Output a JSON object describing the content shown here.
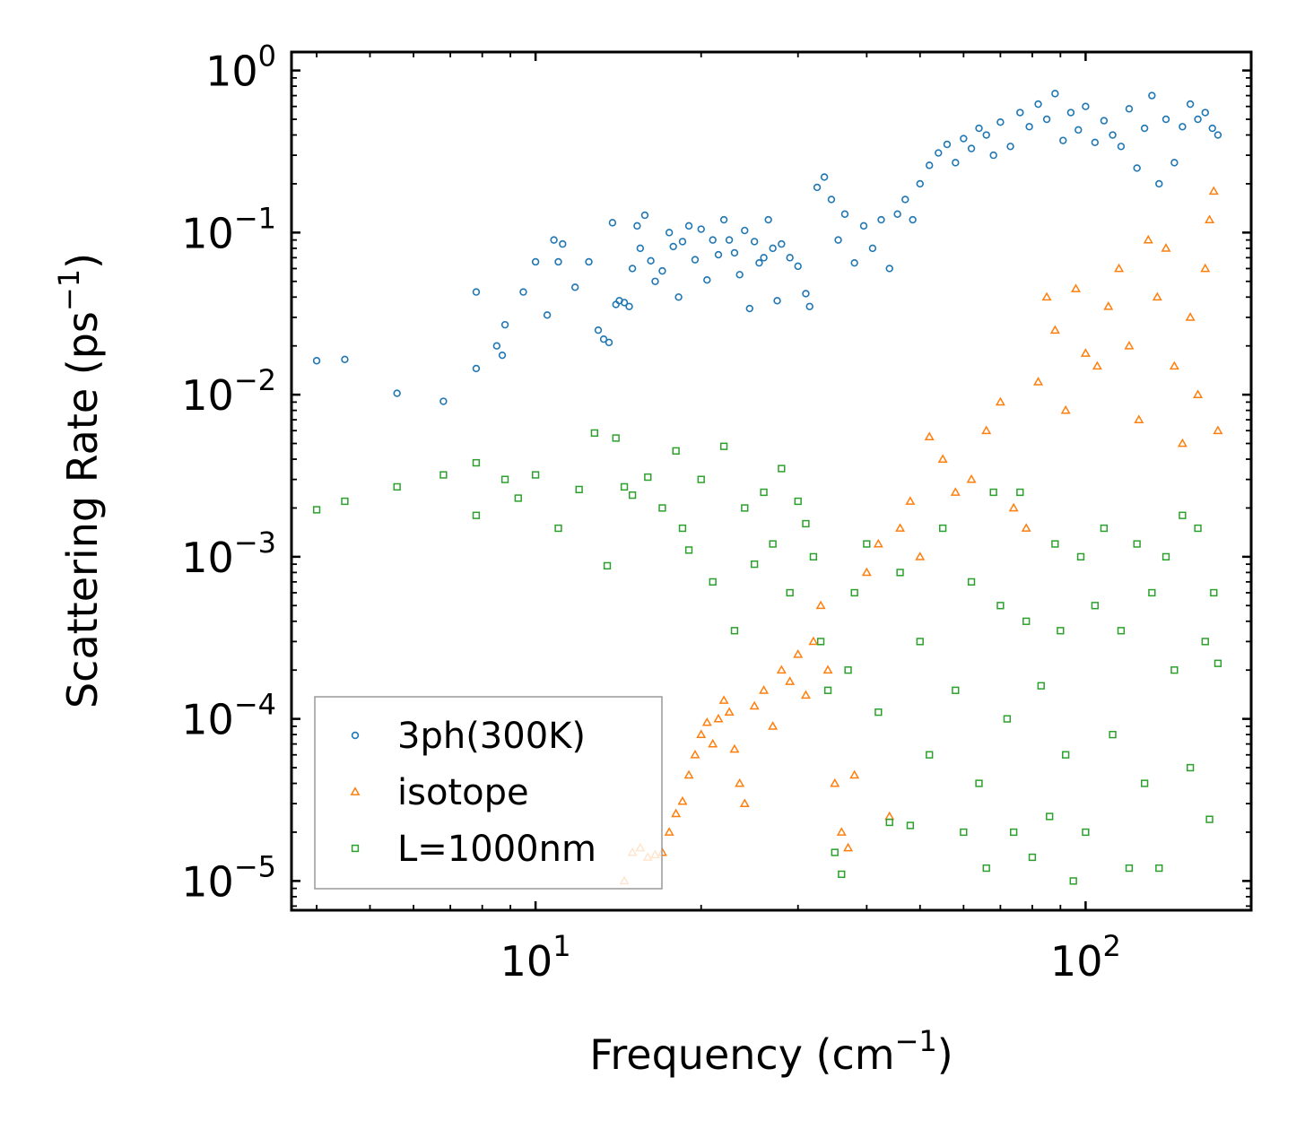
{
  "chart_data": {
    "type": "scatter",
    "xscale": "log",
    "yscale": "log",
    "xlim": [
      3.6,
      200
    ],
    "ylim": [
      6.6e-06,
      1.3
    ],
    "xlabel": {
      "text": "Frequency (cm",
      "sup": "−1",
      "tail": ")"
    },
    "ylabel": {
      "text": "Scattering Rate (ps",
      "sup": "−1",
      "tail": ")"
    },
    "x_ticks": [
      {
        "value": 10,
        "base": "10",
        "exp": "1"
      },
      {
        "value": 100,
        "base": "10",
        "exp": "2"
      }
    ],
    "y_ticks": [
      {
        "value": 1,
        "base": "10",
        "exp": "0"
      },
      {
        "value": 0.1,
        "base": "10",
        "exp": "−1"
      },
      {
        "value": 0.01,
        "base": "10",
        "exp": "−2"
      },
      {
        "value": 0.001,
        "base": "10",
        "exp": "−3"
      },
      {
        "value": 0.0001,
        "base": "10",
        "exp": "−4"
      },
      {
        "value": 1e-05,
        "base": "10",
        "exp": "−5"
      }
    ],
    "legend_position": "lower-left",
    "series": [
      {
        "name": "3ph(300K)",
        "marker": "circle",
        "color": "#1f77b4",
        "points": [
          [
            4.0,
            0.0162
          ],
          [
            4.5,
            0.0165
          ],
          [
            5.6,
            0.0102
          ],
          [
            6.8,
            0.0091
          ],
          [
            7.8,
            0.043
          ],
          [
            7.8,
            0.0145
          ],
          [
            8.5,
            0.02
          ],
          [
            8.7,
            0.0175
          ],
          [
            8.8,
            0.027
          ],
          [
            9.5,
            0.043
          ],
          [
            10.0,
            0.066
          ],
          [
            10.5,
            0.031
          ],
          [
            10.8,
            0.09
          ],
          [
            11.0,
            0.066
          ],
          [
            11.2,
            0.085
          ],
          [
            11.8,
            0.046
          ],
          [
            12.5,
            0.066
          ],
          [
            13.0,
            0.025
          ],
          [
            13.3,
            0.022
          ],
          [
            13.6,
            0.021
          ],
          [
            13.8,
            0.115
          ],
          [
            14.0,
            0.036
          ],
          [
            14.2,
            0.038
          ],
          [
            14.5,
            0.037
          ],
          [
            14.8,
            0.035
          ],
          [
            15.0,
            0.06
          ],
          [
            15.3,
            0.11
          ],
          [
            15.5,
            0.08
          ],
          [
            15.8,
            0.128
          ],
          [
            16.2,
            0.067
          ],
          [
            16.5,
            0.05
          ],
          [
            17.0,
            0.058
          ],
          [
            17.5,
            0.1
          ],
          [
            17.8,
            0.082
          ],
          [
            18.2,
            0.04
          ],
          [
            18.5,
            0.088
          ],
          [
            19.0,
            0.11
          ],
          [
            19.5,
            0.068
          ],
          [
            20.0,
            0.105
          ],
          [
            20.5,
            0.051
          ],
          [
            21.0,
            0.09
          ],
          [
            21.5,
            0.073
          ],
          [
            22.0,
            0.12
          ],
          [
            22.5,
            0.09
          ],
          [
            23.0,
            0.075
          ],
          [
            23.5,
            0.055
          ],
          [
            24.0,
            0.103
          ],
          [
            24.5,
            0.034
          ],
          [
            25.0,
            0.088
          ],
          [
            25.5,
            0.065
          ],
          [
            26.0,
            0.07
          ],
          [
            26.5,
            0.12
          ],
          [
            27.0,
            0.08
          ],
          [
            27.5,
            0.038
          ],
          [
            28.0,
            0.085
          ],
          [
            29.0,
            0.07
          ],
          [
            30.0,
            0.062
          ],
          [
            31.0,
            0.042
          ],
          [
            31.5,
            0.035
          ],
          [
            32.5,
            0.19
          ],
          [
            33.5,
            0.22
          ],
          [
            34.5,
            0.16
          ],
          [
            35.5,
            0.09
          ],
          [
            36.5,
            0.13
          ],
          [
            38.0,
            0.065
          ],
          [
            39.5,
            0.11
          ],
          [
            41.0,
            0.08
          ],
          [
            42.5,
            0.12
          ],
          [
            44.0,
            0.06
          ],
          [
            45.5,
            0.13
          ],
          [
            47.0,
            0.16
          ],
          [
            48.5,
            0.12
          ],
          [
            50.0,
            0.2
          ],
          [
            52.0,
            0.26
          ],
          [
            54.0,
            0.31
          ],
          [
            56.0,
            0.35
          ],
          [
            58.0,
            0.27
          ],
          [
            60.0,
            0.38
          ],
          [
            62.0,
            0.33
          ],
          [
            64.0,
            0.44
          ],
          [
            66.0,
            0.4
          ],
          [
            68.0,
            0.3
          ],
          [
            70.0,
            0.48
          ],
          [
            73.0,
            0.34
          ],
          [
            76.0,
            0.55
          ],
          [
            79.0,
            0.45
          ],
          [
            82.0,
            0.62
          ],
          [
            85.0,
            0.5
          ],
          [
            88.0,
            0.72
          ],
          [
            91.0,
            0.37
          ],
          [
            94.0,
            0.55
          ],
          [
            97.0,
            0.43
          ],
          [
            100.0,
            0.6
          ],
          [
            104.0,
            0.36
          ],
          [
            108.0,
            0.49
          ],
          [
            112.0,
            0.4
          ],
          [
            116.0,
            0.34
          ],
          [
            120.0,
            0.58
          ],
          [
            124.0,
            0.25
          ],
          [
            128.0,
            0.44
          ],
          [
            132.0,
            0.7
          ],
          [
            136.0,
            0.2
          ],
          [
            140.0,
            0.5
          ],
          [
            145.0,
            0.27
          ],
          [
            150.0,
            0.45
          ],
          [
            155.0,
            0.62
          ],
          [
            160.0,
            0.5
          ],
          [
            165.0,
            0.55
          ],
          [
            170.0,
            0.44
          ],
          [
            174.0,
            0.4
          ]
        ]
      },
      {
        "name": "isotope",
        "marker": "triangle",
        "color": "#ff7f0e",
        "points": [
          [
            14.5,
            1e-05
          ],
          [
            15.0,
            1.5e-05
          ],
          [
            15.5,
            1.6e-05
          ],
          [
            16.0,
            1.4e-05
          ],
          [
            16.5,
            1.45e-05
          ],
          [
            17.0,
            1.5e-05
          ],
          [
            17.5,
            2e-05
          ],
          [
            18.0,
            2.6e-05
          ],
          [
            18.5,
            3.1e-05
          ],
          [
            19.0,
            4.5e-05
          ],
          [
            19.5,
            6e-05
          ],
          [
            20.0,
            8e-05
          ],
          [
            20.5,
            9.5e-05
          ],
          [
            21.0,
            7e-05
          ],
          [
            21.5,
            0.0001
          ],
          [
            22.0,
            0.00013
          ],
          [
            22.5,
            0.00011
          ],
          [
            23.0,
            6.5e-05
          ],
          [
            23.5,
            4e-05
          ],
          [
            24.0,
            3e-05
          ],
          [
            25.0,
            0.00012
          ],
          [
            26.0,
            0.00015
          ],
          [
            27.0,
            9e-05
          ],
          [
            28.0,
            0.0002
          ],
          [
            29.0,
            0.00017
          ],
          [
            30.0,
            0.00025
          ],
          [
            31.0,
            0.00014
          ],
          [
            32.0,
            0.0003
          ],
          [
            33.0,
            0.0005
          ],
          [
            34.0,
            0.0002
          ],
          [
            35.0,
            4e-05
          ],
          [
            36.0,
            2e-05
          ],
          [
            37.0,
            1.6e-05
          ],
          [
            38.0,
            4.5e-05
          ],
          [
            40.0,
            0.0008
          ],
          [
            42.0,
            0.0012
          ],
          [
            44.0,
            2.5e-05
          ],
          [
            46.0,
            0.0015
          ],
          [
            48.0,
            0.0022
          ],
          [
            50.0,
            0.001
          ],
          [
            52.0,
            0.0055
          ],
          [
            55.0,
            0.004
          ],
          [
            58.0,
            0.0025
          ],
          [
            62.0,
            0.003
          ],
          [
            66.0,
            0.006
          ],
          [
            70.0,
            0.009
          ],
          [
            74.0,
            0.002
          ],
          [
            78.0,
            0.0015
          ],
          [
            82.0,
            0.012
          ],
          [
            85.0,
            0.04
          ],
          [
            88.0,
            0.025
          ],
          [
            92.0,
            0.008
          ],
          [
            96.0,
            0.045
          ],
          [
            100.0,
            0.018
          ],
          [
            105.0,
            0.015
          ],
          [
            110.0,
            0.035
          ],
          [
            115.0,
            0.06
          ],
          [
            120.0,
            0.02
          ],
          [
            125.0,
            0.007
          ],
          [
            130.0,
            0.09
          ],
          [
            135.0,
            0.04
          ],
          [
            140.0,
            0.08
          ],
          [
            145.0,
            0.015
          ],
          [
            150.0,
            0.005
          ],
          [
            155.0,
            0.03
          ],
          [
            160.0,
            0.01
          ],
          [
            165.0,
            0.06
          ],
          [
            168.0,
            0.12
          ],
          [
            171.0,
            0.18
          ],
          [
            174.0,
            0.006
          ]
        ]
      },
      {
        "name": "L=1000nm",
        "marker": "square",
        "color": "#2ca02c",
        "points": [
          [
            4.0,
            0.00195
          ],
          [
            4.5,
            0.0022
          ],
          [
            5.6,
            0.0027
          ],
          [
            6.8,
            0.0032
          ],
          [
            7.8,
            0.0018
          ],
          [
            7.8,
            0.0038
          ],
          [
            8.8,
            0.003
          ],
          [
            9.3,
            0.0023
          ],
          [
            10.0,
            0.0032
          ],
          [
            11.0,
            0.0015
          ],
          [
            12.0,
            0.0026
          ],
          [
            12.8,
            0.0058
          ],
          [
            13.5,
            0.00088
          ],
          [
            14.0,
            0.0054
          ],
          [
            14.5,
            0.0027
          ],
          [
            15.0,
            0.0024
          ],
          [
            16.0,
            0.0031
          ],
          [
            17.0,
            0.002
          ],
          [
            18.0,
            0.0045
          ],
          [
            18.5,
            0.0015
          ],
          [
            19.0,
            0.0011
          ],
          [
            20.0,
            0.003
          ],
          [
            21.0,
            0.0007
          ],
          [
            22.0,
            0.0048
          ],
          [
            23.0,
            0.00035
          ],
          [
            24.0,
            0.002
          ],
          [
            25.0,
            0.0009
          ],
          [
            26.0,
            0.0025
          ],
          [
            27.0,
            0.0012
          ],
          [
            28.0,
            0.0035
          ],
          [
            29.0,
            0.0006
          ],
          [
            30.0,
            0.0022
          ],
          [
            31.0,
            0.0016
          ],
          [
            32.0,
            0.001
          ],
          [
            33.0,
            0.0003
          ],
          [
            34.0,
            0.00015
          ],
          [
            35.0,
            1.5e-05
          ],
          [
            36.0,
            1.1e-05
          ],
          [
            37.0,
            0.0002
          ],
          [
            38.0,
            0.0006
          ],
          [
            40.0,
            0.0012
          ],
          [
            42.0,
            0.00011
          ],
          [
            44.0,
            2.3e-05
          ],
          [
            46.0,
            0.0008
          ],
          [
            48.0,
            2.2e-05
          ],
          [
            50.0,
            0.0003
          ],
          [
            52.0,
            6e-05
          ],
          [
            55.0,
            0.0015
          ],
          [
            58.0,
            0.00015
          ],
          [
            60.0,
            2e-05
          ],
          [
            62.0,
            0.0007
          ],
          [
            64.0,
            4e-05
          ],
          [
            66.0,
            1.2e-05
          ],
          [
            68.0,
            0.0025
          ],
          [
            70.0,
            0.0005
          ],
          [
            72.0,
            0.0001
          ],
          [
            74.0,
            2e-05
          ],
          [
            76.0,
            0.0025
          ],
          [
            78.0,
            0.0004
          ],
          [
            80.0,
            1.4e-05
          ],
          [
            83.0,
            0.00016
          ],
          [
            86.0,
            2.5e-05
          ],
          [
            88.0,
            0.0012
          ],
          [
            90.0,
            0.00035
          ],
          [
            92.0,
            6e-05
          ],
          [
            95.0,
            1e-05
          ],
          [
            98.0,
            0.001
          ],
          [
            100.0,
            2e-05
          ],
          [
            104.0,
            0.0005
          ],
          [
            108.0,
            0.0015
          ],
          [
            112.0,
            8e-05
          ],
          [
            116.0,
            0.00035
          ],
          [
            120.0,
            1.2e-05
          ],
          [
            124.0,
            0.0012
          ],
          [
            128.0,
            4e-05
          ],
          [
            132.0,
            0.0006
          ],
          [
            136.0,
            1.2e-05
          ],
          [
            140.0,
            0.001
          ],
          [
            145.0,
            0.0002
          ],
          [
            150.0,
            0.0018
          ],
          [
            155.0,
            5e-05
          ],
          [
            160.0,
            0.0015
          ],
          [
            165.0,
            0.0003
          ],
          [
            168.0,
            2.4e-05
          ],
          [
            171.0,
            0.0006
          ],
          [
            174.0,
            0.00022
          ]
        ]
      }
    ]
  }
}
